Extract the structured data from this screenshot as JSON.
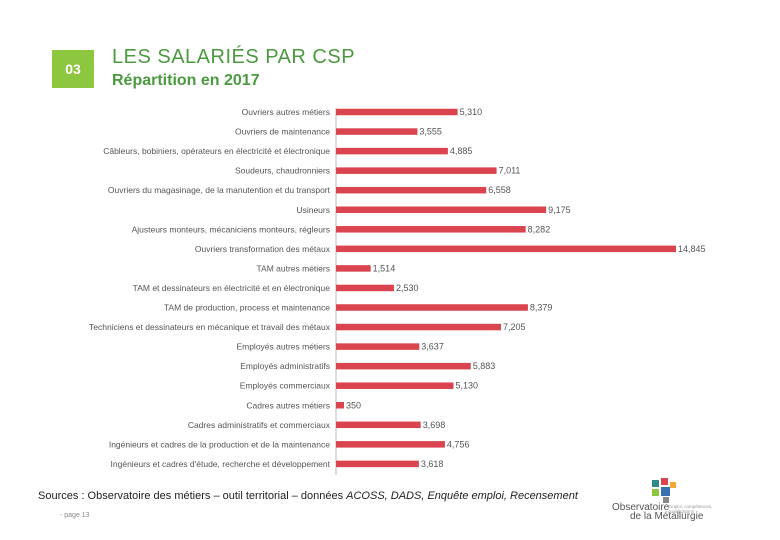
{
  "header": {
    "badge": "03",
    "title": "LES SALARIÉS PAR CSP",
    "subtitle": "Répartition en 2017"
  },
  "chart_data": {
    "type": "bar",
    "orientation": "horizontal",
    "title": "Répartition en 2017",
    "categories": [
      "Ouvriers autres métiers",
      "Ouvriers de maintenance",
      "Câbleurs, bobiniers, opérateurs en électricité et électronique",
      "Soudeurs, chaudronniers",
      "Ouvriers du magasinage, de la manutention et du transport",
      "Usineurs",
      "Ajusteurs monteurs, mécaniciens monteurs, régleurs",
      "Ouvriers transformation des métaux",
      "TAM autres métiers",
      "TAM et dessinateurs en électricité et en électronique",
      "TAM de production, process et maintenance",
      "Techniciens et dessinateurs en mécanique et travail des métaux",
      "Employés autres métiers",
      "Employés administratifs",
      "Employés commerciaux",
      "Cadres autres métiers",
      "Cadres administratifs et commerciaux",
      "Ingénieurs et cadres de la production et de la maintenance",
      "Ingénieurs et cadres d'étude, recherche et développement"
    ],
    "values": [
      5310,
      3555,
      4885,
      7011,
      6558,
      9175,
      8282,
      14845,
      1514,
      2530,
      8379,
      7205,
      3637,
      5883,
      5130,
      350,
      3698,
      4756,
      3618
    ],
    "value_labels": [
      "5,310",
      "3,555",
      "4,885",
      "7,011",
      "6,558",
      "9,175",
      "8,282",
      "14,845",
      "1,514",
      "2,530",
      "8,379",
      "7,205",
      "3,637",
      "5,883",
      "5,130",
      "350",
      "3,698",
      "4,756",
      "3,618"
    ],
    "xlim": [
      0,
      14845
    ],
    "bar_color": "#d9444f"
  },
  "footer": {
    "sources_prefix": "Sources : Observatoire des métiers – outil territorial – données ",
    "sources_italic": "ACOSS, DADS, Enquête emploi, Recensement",
    "page": "- page 13",
    "logo_line1": "Observatoire",
    "logo_line2": "de la Métallurgie",
    "logo_sub": "Emploi, compétences, qualifications"
  }
}
